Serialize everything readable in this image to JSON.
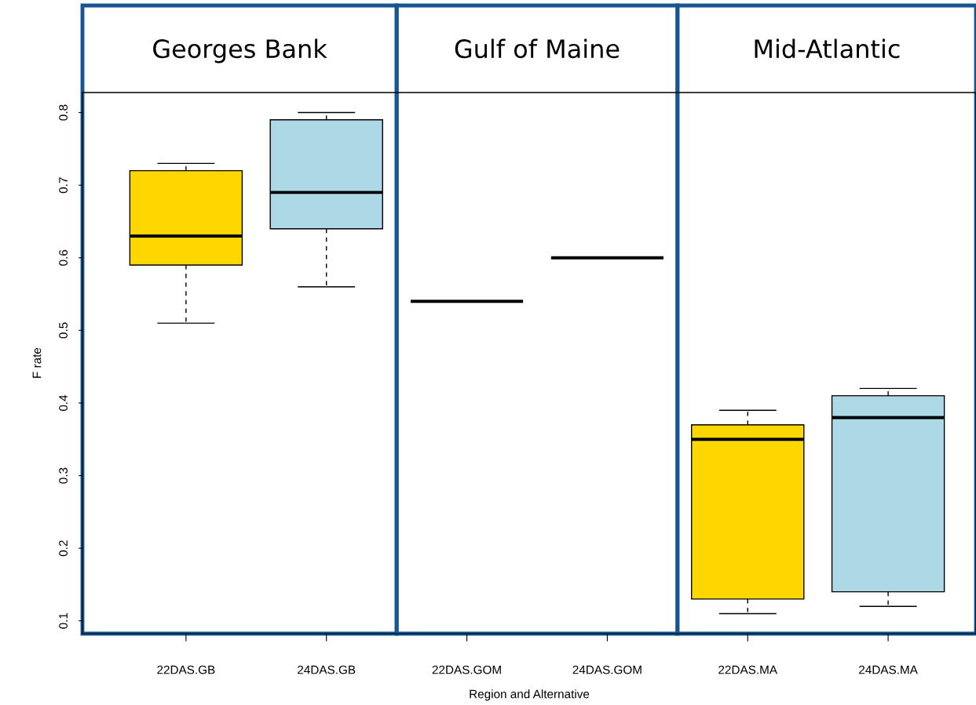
{
  "chart_data": {
    "type": "box",
    "xlabel": "Region and Alternative",
    "ylabel": "F rate",
    "categories": [
      "22DAS.GB",
      "24DAS.GB",
      "22DAS.GOM",
      "24DAS.GOM",
      "22DAS.MA",
      "24DAS.MA"
    ],
    "boxes": [
      {
        "low": 0.51,
        "q1": 0.59,
        "median": 0.63,
        "q3": 0.72,
        "high": 0.73
      },
      {
        "low": 0.56,
        "q1": 0.64,
        "median": 0.69,
        "q3": 0.79,
        "high": 0.8
      },
      {
        "low": 0.54,
        "q1": 0.54,
        "median": 0.54,
        "q3": 0.54,
        "high": 0.54
      },
      {
        "low": 0.6,
        "q1": 0.6,
        "median": 0.6,
        "q3": 0.6,
        "high": 0.6
      },
      {
        "low": 0.11,
        "q1": 0.13,
        "median": 0.35,
        "q3": 0.37,
        "high": 0.39
      },
      {
        "low": 0.12,
        "q1": 0.14,
        "median": 0.38,
        "q3": 0.41,
        "high": 0.42
      }
    ],
    "colors": [
      "#ffd700",
      "#add8e6",
      null,
      null,
      "#ffd700",
      "#add8e6"
    ],
    "ylim": [
      0.0824,
      0.8276
    ],
    "yticks": [
      0.1,
      0.2,
      0.3,
      0.4,
      0.5,
      0.6,
      0.7,
      0.8
    ],
    "grid": false,
    "legend": false,
    "annotations": [
      "Georges Bank",
      "Gulf of Maine",
      "Mid-Atlantic"
    ]
  }
}
